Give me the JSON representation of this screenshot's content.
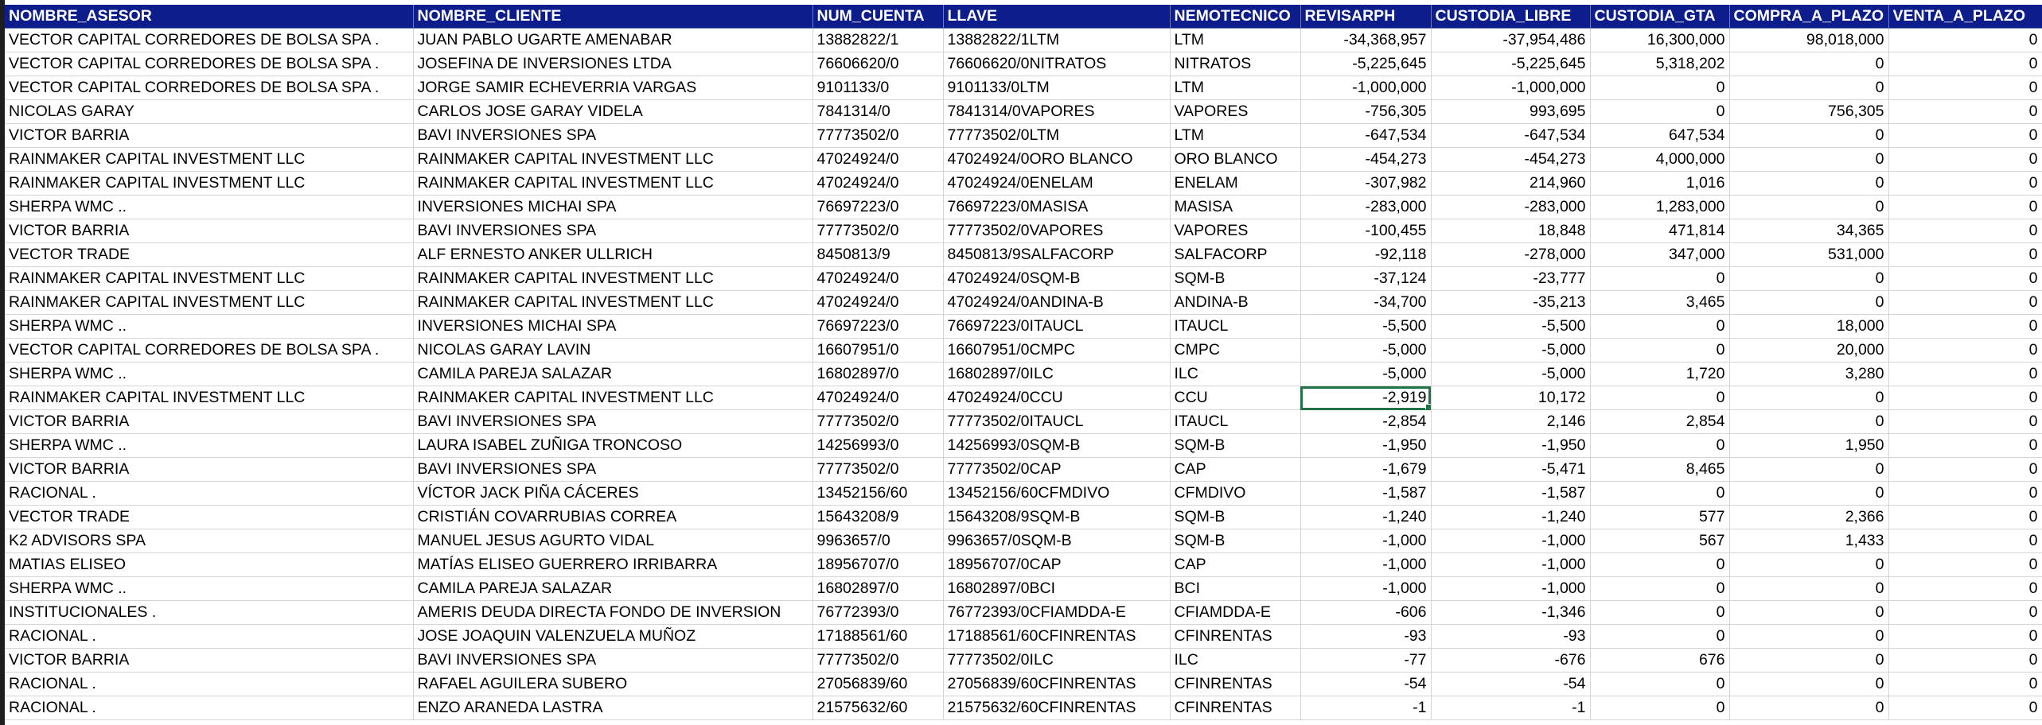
{
  "sheet": {
    "columns": [
      {
        "key": "asesor",
        "label": "NOMBRE_ASESOR",
        "type": "text",
        "width": 513
      },
      {
        "key": "cliente",
        "label": "NOMBRE_CLIENTE",
        "type": "text",
        "width": 502
      },
      {
        "key": "cuenta",
        "label": "NUM_CUENTA",
        "type": "text",
        "width": 164
      },
      {
        "key": "llave",
        "label": "LLAVE",
        "type": "text",
        "width": 285
      },
      {
        "key": "nemo",
        "label": "NEMOTECNICO",
        "type": "text",
        "width": 164
      },
      {
        "key": "revisarph",
        "label": "REVISARPH",
        "type": "num",
        "width": 164
      },
      {
        "key": "custodia_libre",
        "label": "CUSTODIA_LIBRE",
        "type": "num",
        "width": 200
      },
      {
        "key": "custodia_gta",
        "label": "CUSTODIA_GTA",
        "type": "num",
        "width": 175
      },
      {
        "key": "compra_a_plazo",
        "label": "COMPRA_A_PLAZO",
        "type": "num",
        "width": 200
      },
      {
        "key": "venta_a_plazo",
        "label": "VENTA_A_PLAZO",
        "type": "num",
        "width": 193
      }
    ],
    "selected_cell": {
      "row": 15,
      "col": "revisarph"
    },
    "negative_color": "#e0140f",
    "header_bg": "#0d1e8c",
    "rows": [
      [
        "VECTOR CAPITAL CORREDORES DE BOLSA SPA .",
        "JUAN PABLO UGARTE AMENABAR",
        "13882822/1",
        "13882822/1LTM",
        "LTM",
        "-34,368,957",
        "-37,954,486",
        "16,300,000",
        "98,018,000",
        "0"
      ],
      [
        "VECTOR CAPITAL CORREDORES DE BOLSA SPA .",
        "JOSEFINA DE INVERSIONES LTDA",
        "76606620/0",
        "76606620/0NITRATOS",
        "NITRATOS",
        "-5,225,645",
        "-5,225,645",
        "5,318,202",
        "0",
        "0"
      ],
      [
        "VECTOR CAPITAL CORREDORES DE BOLSA SPA .",
        "JORGE SAMIR ECHEVERRIA VARGAS",
        "9101133/0",
        "9101133/0LTM",
        "LTM",
        "-1,000,000",
        "-1,000,000",
        "0",
        "0",
        "0"
      ],
      [
        "NICOLAS GARAY",
        "CARLOS JOSE GARAY VIDELA",
        "7841314/0",
        "7841314/0VAPORES",
        "VAPORES",
        "-756,305",
        "993,695",
        "0",
        "756,305",
        "0"
      ],
      [
        "VICTOR BARRIA",
        "BAVI INVERSIONES SPA",
        "77773502/0",
        "77773502/0LTM",
        "LTM",
        "-647,534",
        "-647,534",
        "647,534",
        "0",
        "0"
      ],
      [
        "RAINMAKER CAPITAL INVESTMENT  LLC",
        "RAINMAKER CAPITAL INVESTMENT LLC",
        "47024924/0",
        "47024924/0ORO BLANCO",
        "ORO BLANCO",
        "-454,273",
        "-454,273",
        "4,000,000",
        "0",
        "0"
      ],
      [
        "RAINMAKER CAPITAL INVESTMENT  LLC",
        "RAINMAKER CAPITAL INVESTMENT LLC",
        "47024924/0",
        "47024924/0ENELAM",
        "ENELAM",
        "-307,982",
        "214,960",
        "1,016",
        "0",
        "0"
      ],
      [
        "SHERPA WMC ..",
        "INVERSIONES MICHAI SPA",
        "76697223/0",
        "76697223/0MASISA",
        "MASISA",
        "-283,000",
        "-283,000",
        "1,283,000",
        "0",
        "0"
      ],
      [
        "VICTOR BARRIA",
        "BAVI INVERSIONES SPA",
        "77773502/0",
        "77773502/0VAPORES",
        "VAPORES",
        "-100,455",
        "18,848",
        "471,814",
        "34,365",
        "0"
      ],
      [
        "VECTOR TRADE",
        "ALF ERNESTO ANKER ULLRICH",
        "8450813/9",
        "8450813/9SALFACORP",
        "SALFACORP",
        "-92,118",
        "-278,000",
        "347,000",
        "531,000",
        "0"
      ],
      [
        "RAINMAKER CAPITAL INVESTMENT  LLC",
        "RAINMAKER CAPITAL INVESTMENT LLC",
        "47024924/0",
        "47024924/0SQM-B",
        "SQM-B",
        "-37,124",
        "-23,777",
        "0",
        "0",
        "0"
      ],
      [
        "RAINMAKER CAPITAL INVESTMENT  LLC",
        "RAINMAKER CAPITAL INVESTMENT LLC",
        "47024924/0",
        "47024924/0ANDINA-B",
        "ANDINA-B",
        "-34,700",
        "-35,213",
        "3,465",
        "0",
        "0"
      ],
      [
        "SHERPA WMC ..",
        "INVERSIONES MICHAI SPA",
        "76697223/0",
        "76697223/0ITAUCL",
        "ITAUCL",
        "-5,500",
        "-5,500",
        "0",
        "18,000",
        "0"
      ],
      [
        "VECTOR CAPITAL CORREDORES DE BOLSA SPA .",
        "NICOLAS GARAY LAVIN",
        "16607951/0",
        "16607951/0CMPC",
        "CMPC",
        "-5,000",
        "-5,000",
        "0",
        "20,000",
        "0"
      ],
      [
        "SHERPA WMC ..",
        "CAMILA PAREJA SALAZAR",
        "16802897/0",
        "16802897/0ILC",
        "ILC",
        "-5,000",
        "-5,000",
        "1,720",
        "3,280",
        "0"
      ],
      [
        "RAINMAKER CAPITAL INVESTMENT  LLC",
        "RAINMAKER CAPITAL INVESTMENT LLC",
        "47024924/0",
        "47024924/0CCU",
        "CCU",
        "-2,919",
        "10,172",
        "0",
        "0",
        "0"
      ],
      [
        "VICTOR BARRIA",
        "BAVI INVERSIONES SPA",
        "77773502/0",
        "77773502/0ITAUCL",
        "ITAUCL",
        "-2,854",
        "2,146",
        "2,854",
        "0",
        "0"
      ],
      [
        "SHERPA WMC ..",
        "LAURA ISABEL ZUÑIGA TRONCOSO",
        "14256993/0",
        "14256993/0SQM-B",
        "SQM-B",
        "-1,950",
        "-1,950",
        "0",
        "1,950",
        "0"
      ],
      [
        "VICTOR BARRIA",
        "BAVI INVERSIONES SPA",
        "77773502/0",
        "77773502/0CAP",
        "CAP",
        "-1,679",
        "-5,471",
        "8,465",
        "0",
        "0"
      ],
      [
        "RACIONAL .",
        "VÍCTOR JACK PIÑA CÁCERES",
        "13452156/60",
        "13452156/60CFMDIVO",
        "CFMDIVO",
        "-1,587",
        "-1,587",
        "0",
        "0",
        "0"
      ],
      [
        "VECTOR TRADE",
        "CRISTIÁN COVARRUBIAS CORREA",
        "15643208/9",
        "15643208/9SQM-B",
        "SQM-B",
        "-1,240",
        "-1,240",
        "577",
        "2,366",
        "0"
      ],
      [
        "K2 ADVISORS  SPA",
        "MANUEL JESUS AGURTO VIDAL",
        "9963657/0",
        "9963657/0SQM-B",
        "SQM-B",
        "-1,000",
        "-1,000",
        "567",
        "1,433",
        "0"
      ],
      [
        "MATIAS  ELISEO",
        "MATÍAS ELISEO GUERRERO IRRIBARRA",
        "18956707/0",
        "18956707/0CAP",
        "CAP",
        "-1,000",
        "-1,000",
        "0",
        "0",
        "0"
      ],
      [
        "SHERPA WMC ..",
        "CAMILA PAREJA SALAZAR",
        "16802897/0",
        "16802897/0BCI",
        "BCI",
        "-1,000",
        "-1,000",
        "0",
        "0",
        "0"
      ],
      [
        "INSTITUCIONALES .",
        "AMERIS DEUDA DIRECTA FONDO DE INVERSION",
        "76772393/0",
        "76772393/0CFIAMDDA-E",
        "CFIAMDDA-E",
        "-606",
        "-1,346",
        "0",
        "0",
        "0"
      ],
      [
        "RACIONAL .",
        "JOSE JOAQUIN VALENZUELA MUÑOZ",
        "17188561/60",
        "17188561/60CFINRENTAS",
        "CFINRENTAS",
        "-93",
        "-93",
        "0",
        "0",
        "0"
      ],
      [
        "VICTOR BARRIA",
        "BAVI INVERSIONES SPA",
        "77773502/0",
        "77773502/0ILC",
        "ILC",
        "-77",
        "-676",
        "676",
        "0",
        "0"
      ],
      [
        "RACIONAL .",
        "RAFAEL AGUILERA SUBERO",
        "27056839/60",
        "27056839/60CFINRENTAS",
        "CFINRENTAS",
        "-54",
        "-54",
        "0",
        "0",
        "0"
      ],
      [
        "RACIONAL .",
        "ENZO ARANEDA LASTRA",
        "21575632/60",
        "21575632/60CFINRENTAS",
        "CFINRENTAS",
        "-1",
        "-1",
        "0",
        "0",
        "0"
      ]
    ]
  }
}
